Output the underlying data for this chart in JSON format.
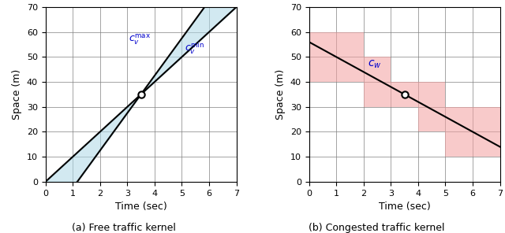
{
  "fig_width": 6.4,
  "fig_height": 2.96,
  "dpi": 100,
  "xlim": [
    0,
    7
  ],
  "ylim": [
    0,
    70
  ],
  "xticks": [
    0,
    1,
    2,
    3,
    4,
    5,
    6,
    7
  ],
  "yticks": [
    0,
    10,
    20,
    30,
    40,
    50,
    60,
    70
  ],
  "xlabel": "Time (sec)",
  "ylabel": "Space (m)",
  "point_x": 3.5,
  "point_y": 35,
  "free_cv_max_slope": 15,
  "free_cv_min_slope": 10,
  "cw_slope": -6,
  "cw_intercept": 56,
  "blue_color": "#add8e6",
  "blue_alpha": 0.55,
  "red_color": "#f4a0a0",
  "red_alpha": 0.55,
  "line_color": "black",
  "line_width": 1.5,
  "point_size": 6,
  "label_color": "#0000cc",
  "label_fontsize": 9,
  "caption_left": "(a) Free traffic kernel",
  "caption_right": "(b) Congested traffic kernel",
  "caption_fontsize": 9,
  "tick_fontsize": 8,
  "axis_label_fontsize": 9,
  "grid_color": "#808080",
  "grid_lw": 0.5
}
